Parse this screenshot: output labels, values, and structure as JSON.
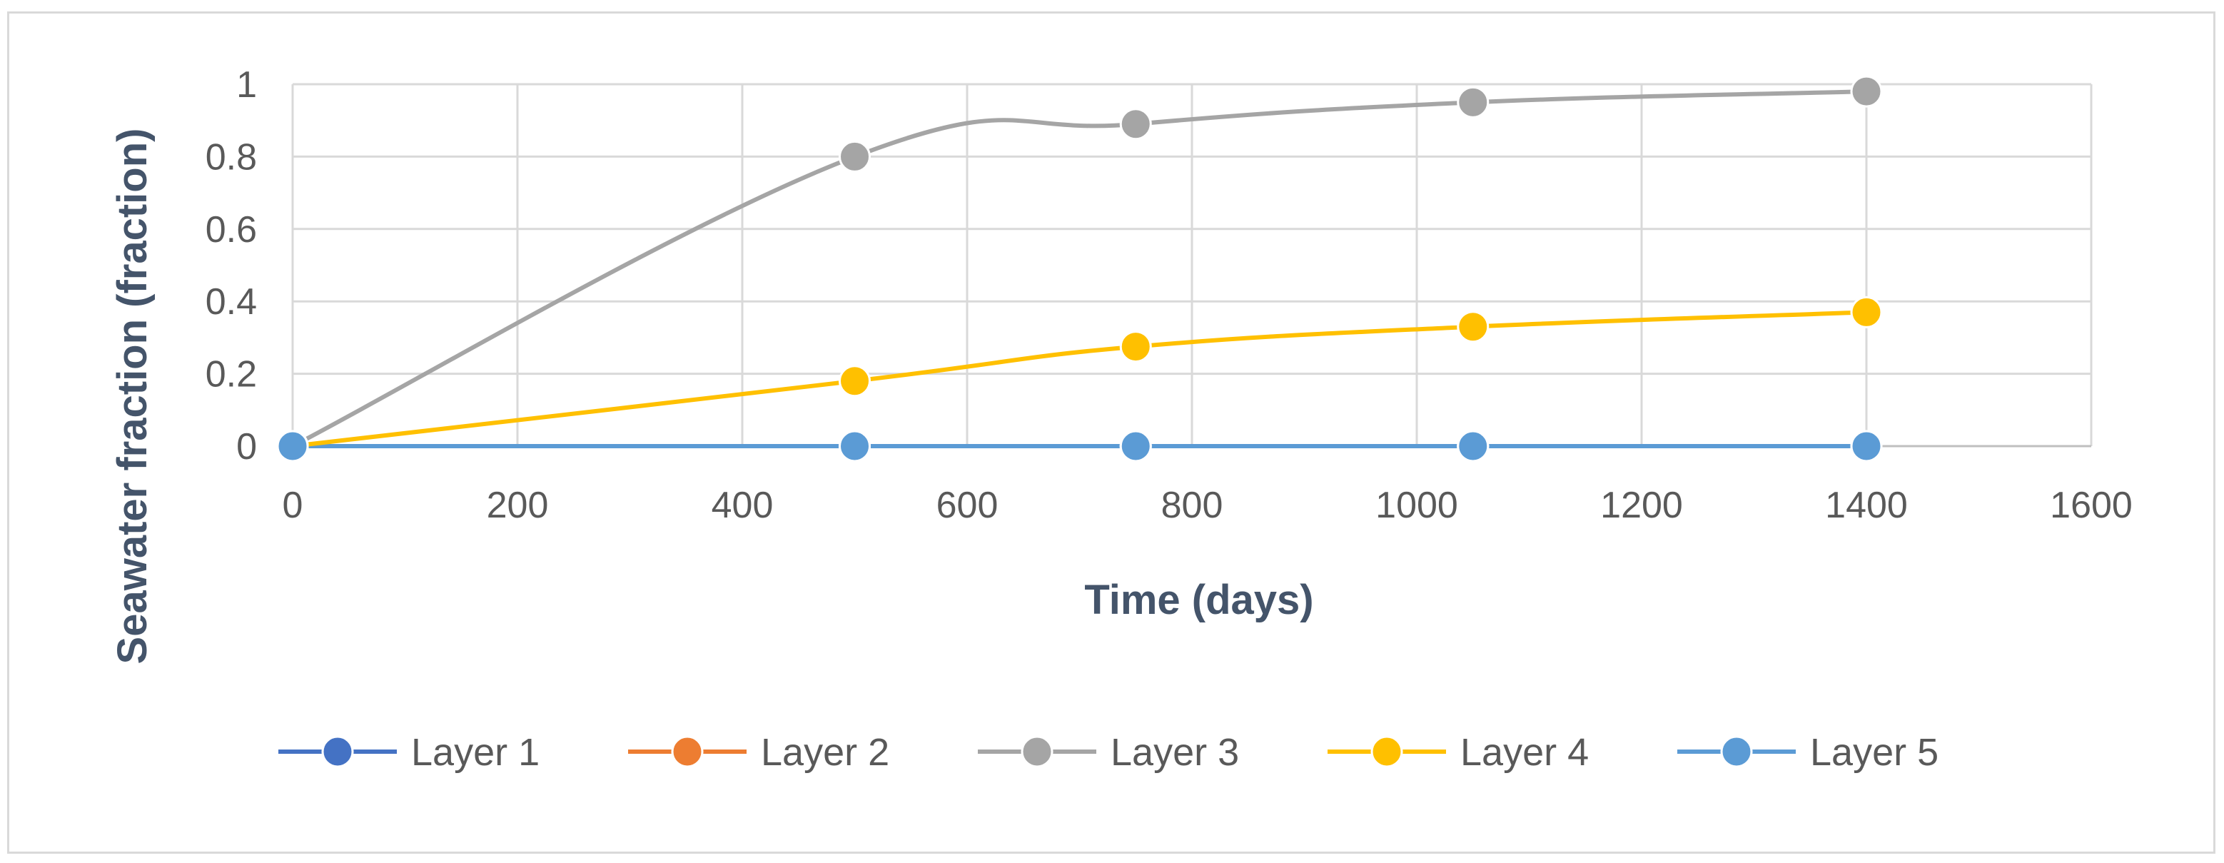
{
  "chart_data": {
    "type": "line",
    "title": "",
    "xlabel": "Time (days)",
    "ylabel": "Seawater fraction (fraction)",
    "xlim": [
      0,
      1600
    ],
    "ylim": [
      0,
      1
    ],
    "x_ticks": [
      0,
      200,
      400,
      600,
      800,
      1000,
      1200,
      1400,
      1600
    ],
    "y_ticks": [
      0,
      0.2,
      0.4,
      0.6,
      0.8,
      1
    ],
    "y_tick_labels": [
      "0",
      "0.2",
      "0.4",
      "0.6",
      "0.8",
      "1"
    ],
    "x": [
      0,
      500,
      750,
      1050,
      1400
    ],
    "series": [
      {
        "name": "Layer 1",
        "color": "#4472c4",
        "values": [
          0,
          0,
          0,
          0,
          0
        ]
      },
      {
        "name": "Layer 2",
        "color": "#ed7d31",
        "values": [
          0,
          0,
          0,
          0,
          0
        ]
      },
      {
        "name": "Layer 3",
        "color": "#a5a5a5",
        "values": [
          0,
          0.8,
          0.89,
          0.95,
          0.98
        ]
      },
      {
        "name": "Layer 4",
        "color": "#ffc000",
        "values": [
          0,
          0.18,
          0.275,
          0.33,
          0.37
        ]
      },
      {
        "name": "Layer 5",
        "color": "#5b9bd5",
        "values": [
          0,
          0,
          0,
          0,
          0
        ]
      }
    ],
    "grid": true,
    "legend_position": "bottom"
  }
}
